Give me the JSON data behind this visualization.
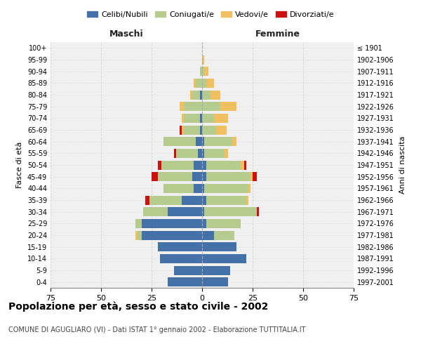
{
  "age_groups": [
    "0-4",
    "5-9",
    "10-14",
    "15-19",
    "20-24",
    "25-29",
    "30-34",
    "35-39",
    "40-44",
    "45-49",
    "50-54",
    "55-59",
    "60-64",
    "65-69",
    "70-74",
    "75-79",
    "80-84",
    "85-89",
    "90-94",
    "95-99",
    "100+"
  ],
  "birth_years": [
    "1997-2001",
    "1992-1996",
    "1987-1991",
    "1982-1986",
    "1977-1981",
    "1972-1976",
    "1967-1971",
    "1962-1966",
    "1957-1961",
    "1952-1956",
    "1947-1951",
    "1942-1946",
    "1937-1941",
    "1932-1936",
    "1927-1931",
    "1922-1926",
    "1917-1921",
    "1912-1916",
    "1907-1911",
    "1902-1906",
    "≤ 1901"
  ],
  "male": {
    "celibi": [
      17,
      14,
      21,
      22,
      30,
      30,
      17,
      10,
      4,
      5,
      4,
      2,
      3,
      1,
      1,
      0,
      1,
      0,
      0,
      0,
      0
    ],
    "coniugati": [
      0,
      0,
      0,
      0,
      2,
      3,
      12,
      16,
      15,
      17,
      16,
      11,
      16,
      8,
      8,
      9,
      4,
      3,
      1,
      0,
      0
    ],
    "vedovi": [
      0,
      0,
      0,
      0,
      1,
      0,
      0,
      0,
      0,
      0,
      0,
      0,
      0,
      1,
      1,
      2,
      1,
      1,
      0,
      0,
      0
    ],
    "divorziati": [
      0,
      0,
      0,
      0,
      0,
      0,
      0,
      2,
      0,
      3,
      2,
      1,
      0,
      1,
      0,
      0,
      0,
      0,
      0,
      0,
      0
    ]
  },
  "female": {
    "nubili": [
      13,
      14,
      22,
      17,
      6,
      2,
      1,
      2,
      1,
      2,
      2,
      1,
      1,
      0,
      0,
      0,
      0,
      0,
      0,
      0,
      0
    ],
    "coniugate": [
      0,
      0,
      0,
      0,
      10,
      17,
      26,
      20,
      22,
      22,
      17,
      10,
      14,
      7,
      6,
      9,
      4,
      2,
      1,
      0,
      0
    ],
    "vedove": [
      0,
      0,
      0,
      0,
      0,
      0,
      0,
      1,
      1,
      1,
      2,
      2,
      2,
      5,
      7,
      8,
      5,
      4,
      2,
      1,
      0
    ],
    "divorziate": [
      0,
      0,
      0,
      0,
      0,
      0,
      1,
      0,
      0,
      2,
      1,
      0,
      0,
      0,
      0,
      0,
      0,
      0,
      0,
      0,
      0
    ]
  },
  "colors": {
    "celibi": "#4472a8",
    "coniugati": "#b5cc8e",
    "vedovi": "#f0c060",
    "divorziati": "#cc1111"
  },
  "title": "Popolazione per età, sesso e stato civile - 2002",
  "subtitle": "COMUNE DI AGUGLIARO (VI) - Dati ISTAT 1° gennaio 2002 - Elaborazione TUTTITALIA.IT",
  "xlim": 75,
  "legend_labels": [
    "Celibi/Nubili",
    "Coniugati/e",
    "Vedovi/e",
    "Divorziati/e"
  ],
  "ylabel_left": "Fasce di età",
  "ylabel_right": "Anni di nascita",
  "xlabel_left": "Maschi",
  "xlabel_right": "Femmine",
  "background_color": "#ffffff",
  "grid_color": "#cccccc"
}
